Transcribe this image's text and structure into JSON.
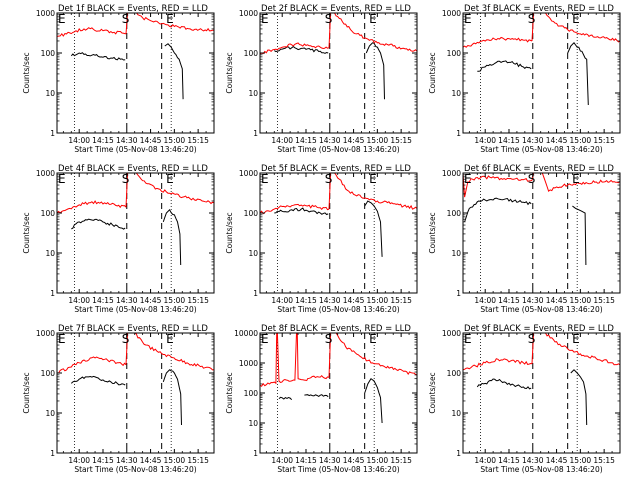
{
  "axis_common": {
    "ylabel": "Counts/sec",
    "xlabel": "Start Time (05-Nov-08 13:46:20)",
    "x_tick_labels": [
      "14:00",
      "14:15",
      "14:30",
      "14:45",
      "15:00",
      "15:15"
    ],
    "x_tick_minutes": [
      0,
      15,
      30,
      45,
      60,
      75
    ],
    "x_range_minutes": [
      -14,
      85
    ],
    "dotted_lines_minutes": [
      -3,
      58
    ],
    "dashed_lines_minutes": [
      30,
      52
    ],
    "markers": [
      {
        "label": "E",
        "minute": -14
      },
      {
        "label": "S",
        "minute": 30
      },
      {
        "label": "E",
        "minute": 58
      }
    ]
  },
  "colors": {
    "black_series": "#000000",
    "red_series": "#ff0000",
    "axes": "#000000"
  },
  "chart_data": [
    {
      "type": "line",
      "title": "Det 1f BLACK = Events, RED = LLD",
      "yscale": "log",
      "ylim": [
        1,
        1000
      ],
      "y_tick_labels": [
        "1",
        "10",
        "100",
        "1000"
      ],
      "y_ticks": [
        1,
        10,
        100,
        1000
      ],
      "series": [
        {
          "color": "black",
          "x": [
            -5,
            0,
            8,
            14,
            20,
            26,
            29
          ],
          "y": [
            85,
            100,
            88,
            80,
            75,
            70,
            68
          ]
        },
        {
          "color": "black",
          "x": [
            54,
            56,
            58,
            60,
            63,
            65,
            65.5
          ],
          "y": [
            150,
            170,
            140,
            100,
            70,
            40,
            7
          ]
        },
        {
          "color": "red",
          "x": [
            -14,
            -8,
            -2,
            3,
            9,
            15,
            22,
            28,
            29.5
          ],
          "y": [
            260,
            300,
            360,
            400,
            390,
            360,
            330,
            310,
            300
          ]
        },
        {
          "color": "red",
          "x": [
            29.5,
            30.5
          ],
          "y": [
            300,
            1000
          ]
        },
        {
          "color": "red",
          "x": [
            35,
            40,
            46,
            52,
            60,
            70,
            85
          ],
          "y": [
            1000,
            760,
            620,
            540,
            460,
            400,
            370
          ]
        }
      ]
    },
    {
      "type": "line",
      "title": "Det 2f BLACK = Events, RED = LLD",
      "yscale": "log",
      "ylim": [
        1,
        1000
      ],
      "y_tick_labels": [
        "1",
        "10",
        "100",
        "1000"
      ],
      "y_ticks": [
        1,
        10,
        100,
        1000
      ],
      "series": [
        {
          "color": "black",
          "x": [
            -5,
            0,
            6,
            12,
            18,
            24,
            29
          ],
          "y": [
            115,
            125,
            135,
            130,
            120,
            110,
            100
          ]
        },
        {
          "color": "black",
          "x": [
            53,
            55,
            57,
            60,
            62,
            64,
            64.5
          ],
          "y": [
            100,
            150,
            180,
            140,
            100,
            50,
            7
          ]
        },
        {
          "color": "red",
          "x": [
            -14,
            -6,
            0,
            8,
            16,
            24,
            29.5
          ],
          "y": [
            95,
            120,
            140,
            165,
            160,
            140,
            135
          ]
        },
        {
          "color": "red",
          "x": [
            29.5,
            30.5
          ],
          "y": [
            135,
            1000
          ]
        },
        {
          "color": "red",
          "x": [
            33,
            38,
            44,
            52,
            60,
            70,
            85
          ],
          "y": [
            1000,
            600,
            350,
            240,
            180,
            150,
            110
          ]
        }
      ]
    },
    {
      "type": "line",
      "title": "Det 3f BLACK = Events, RED = LLD",
      "yscale": "log",
      "ylim": [
        1,
        1000
      ],
      "y_tick_labels": [
        "1",
        "10",
        "100",
        "1000"
      ],
      "y_ticks": [
        1,
        10,
        100,
        1000
      ],
      "series": [
        {
          "color": "black",
          "x": [
            -5,
            0,
            6,
            12,
            18,
            24,
            29
          ],
          "y": [
            35,
            45,
            55,
            62,
            55,
            45,
            40
          ]
        },
        {
          "color": "black",
          "x": [
            52,
            54,
            56,
            58,
            61,
            64,
            65
          ],
          "y": [
            100,
            150,
            180,
            140,
            110,
            70,
            5
          ]
        },
        {
          "color": "red",
          "x": [
            -14,
            -6,
            0,
            8,
            16,
            24,
            29.5
          ],
          "y": [
            140,
            170,
            200,
            230,
            220,
            210,
            200
          ]
        },
        {
          "color": "red",
          "x": [
            29.5,
            30.5
          ],
          "y": [
            200,
            1000
          ]
        },
        {
          "color": "red",
          "x": [
            38,
            44,
            52,
            60,
            70,
            85
          ],
          "y": [
            1000,
            560,
            380,
            300,
            250,
            200
          ]
        }
      ]
    },
    {
      "type": "line",
      "title": "Det 4f BLACK = Events, RED = LLD",
      "yscale": "log",
      "ylim": [
        1,
        1000
      ],
      "y_tick_labels": [
        "1",
        "10",
        "100",
        "1000"
      ],
      "y_ticks": [
        1,
        10,
        100,
        1000
      ],
      "series": [
        {
          "color": "black",
          "x": [
            -5,
            0,
            6,
            12,
            18,
            24,
            29
          ],
          "y": [
            40,
            60,
            70,
            65,
            55,
            48,
            42
          ]
        },
        {
          "color": "black",
          "x": [
            53,
            55,
            57,
            60,
            62,
            63.5,
            64
          ],
          "y": [
            60,
            100,
            120,
            90,
            60,
            30,
            5
          ]
        },
        {
          "color": "red",
          "x": [
            -14,
            -6,
            0,
            8,
            16,
            24,
            29.5
          ],
          "y": [
            100,
            130,
            160,
            190,
            180,
            150,
            140
          ]
        },
        {
          "color": "red",
          "x": [
            29.5,
            30.5
          ],
          "y": [
            140,
            1000
          ]
        },
        {
          "color": "red",
          "x": [
            36,
            42,
            50,
            58,
            68,
            85
          ],
          "y": [
            1000,
            560,
            400,
            300,
            240,
            180
          ]
        }
      ]
    },
    {
      "type": "line",
      "title": "Det 5f BLACK = Events, RED = LLD",
      "yscale": "log",
      "ylim": [
        1,
        1000
      ],
      "y_tick_labels": [
        "1",
        "10",
        "100",
        "1000"
      ],
      "y_ticks": [
        1,
        10,
        100,
        1000
      ],
      "series": [
        {
          "color": "black",
          "x": [
            -5,
            0,
            6,
            12,
            18,
            24,
            29
          ],
          "y": [
            100,
            110,
            120,
            125,
            110,
            100,
            95
          ]
        },
        {
          "color": "black",
          "x": [
            52,
            54,
            56,
            58,
            60,
            62,
            63
          ],
          "y": [
            150,
            200,
            180,
            150,
            110,
            60,
            8
          ]
        },
        {
          "color": "red",
          "x": [
            -14,
            -6,
            0,
            8,
            16,
            24,
            29.5
          ],
          "y": [
            100,
            120,
            145,
            160,
            150,
            135,
            125
          ]
        },
        {
          "color": "red",
          "x": [
            29.5,
            30.5
          ],
          "y": [
            125,
            1000
          ]
        },
        {
          "color": "red",
          "x": [
            33,
            36,
            40,
            46,
            52,
            60,
            70,
            85
          ],
          "y": [
            1000,
            700,
            400,
            280,
            240,
            200,
            170,
            130
          ]
        }
      ]
    },
    {
      "type": "line",
      "title": "Det 6f BLACK = Events, RED = LLD",
      "yscale": "log",
      "ylim": [
        1,
        1000
      ],
      "y_tick_labels": [
        "1",
        "10",
        "100",
        "1000"
      ],
      "y_ticks": [
        1,
        10,
        100,
        1000
      ],
      "series": [
        {
          "color": "black",
          "x": [
            -13,
            -10,
            -5,
            0,
            6,
            12,
            18,
            24,
            29
          ],
          "y": [
            60,
            130,
            190,
            210,
            230,
            220,
            200,
            185,
            170
          ]
        },
        {
          "color": "black",
          "x": [
            55,
            57,
            59,
            61,
            63,
            63.5
          ],
          "y": [
            150,
            130,
            120,
            110,
            100,
            5
          ]
        },
        {
          "color": "red",
          "x": [
            -14,
            -13,
            -11,
            -8,
            -3,
            3,
            10,
            18,
            24,
            29.5
          ],
          "y": [
            1000,
            250,
            600,
            700,
            760,
            780,
            730,
            700,
            680,
            650
          ]
        },
        {
          "color": "red",
          "x": [
            29.5,
            30.5
          ],
          "y": [
            650,
            1000
          ]
        },
        {
          "color": "red",
          "x": [
            34,
            36,
            38,
            40,
            45,
            52,
            60,
            70,
            85
          ],
          "y": [
            1000,
            1000,
            600,
            350,
            450,
            500,
            550,
            600,
            620
          ]
        }
      ]
    },
    {
      "type": "line",
      "title": "Det 7f BLACK = Events, RED = LLD",
      "yscale": "log",
      "ylim": [
        1,
        1000
      ],
      "y_tick_labels": [
        "1",
        "10",
        "100",
        "1000"
      ],
      "y_ticks": [
        1,
        10,
        100,
        1000
      ],
      "series": [
        {
          "color": "black",
          "x": [
            -5,
            0,
            6,
            12,
            18,
            24,
            29
          ],
          "y": [
            55,
            70,
            80,
            75,
            60,
            55,
            50
          ]
        },
        {
          "color": "black",
          "x": [
            53,
            55,
            57,
            60,
            62,
            64,
            64.5
          ],
          "y": [
            60,
            100,
            120,
            100,
            70,
            30,
            5
          ]
        },
        {
          "color": "red",
          "x": [
            -14,
            -6,
            0,
            8,
            16,
            24,
            29.5
          ],
          "y": [
            100,
            140,
            180,
            240,
            220,
            180,
            160
          ]
        },
        {
          "color": "red",
          "x": [
            29.5,
            30.5
          ],
          "y": [
            160,
            1000
          ]
        },
        {
          "color": "red",
          "x": [
            35,
            42,
            50,
            58,
            68,
            85
          ],
          "y": [
            1000,
            500,
            330,
            250,
            180,
            120
          ]
        }
      ]
    },
    {
      "type": "line",
      "title": "Det 8f BLACK = Events, RED = LLD",
      "yscale": "log",
      "ylim": [
        1,
        10000
      ],
      "y_tick_labels": [
        "1",
        "10",
        "100",
        "1000",
        "10000"
      ],
      "y_ticks": [
        1,
        10,
        100,
        1000,
        10000
      ],
      "series": [
        {
          "color": "black",
          "x": [
            -2,
            2,
            6
          ],
          "y": [
            65,
            70,
            60
          ]
        },
        {
          "color": "black",
          "x": [
            14,
            20,
            26,
            29
          ],
          "y": [
            85,
            80,
            78,
            75
          ]
        },
        {
          "color": "black",
          "x": [
            52,
            54,
            56,
            58,
            60,
            62,
            63
          ],
          "y": [
            100,
            200,
            300,
            250,
            150,
            70,
            10
          ]
        },
        {
          "color": "red",
          "x": [
            -14,
            -8,
            -4,
            -3.5,
            -3,
            -2,
            8,
            9,
            9.5,
            10,
            12,
            14,
            15.5
          ],
          "y": [
            180,
            200,
            210,
            10000,
            10000,
            250,
            270,
            10000,
            10000,
            300,
            280,
            270,
            260
          ]
        },
        {
          "color": "red",
          "x": [
            15.5,
            16,
            18,
            24,
            29.5
          ],
          "y": [
            260,
            300,
            320,
            340,
            330
          ]
        },
        {
          "color": "red",
          "x": [
            29.5,
            30.5
          ],
          "y": [
            330,
            10000
          ]
        },
        {
          "color": "red",
          "x": [
            34,
            40,
            46,
            54,
            62,
            72,
            85
          ],
          "y": [
            10000,
            3500,
            2200,
            1200,
            800,
            600,
            400
          ]
        }
      ]
    },
    {
      "type": "line",
      "title": "Det 9f BLACK = Events, RED = LLD",
      "yscale": "log",
      "ylim": [
        1,
        1000
      ],
      "y_tick_labels": [
        "1",
        "10",
        "100",
        "1000"
      ],
      "y_ticks": [
        1,
        10,
        100,
        1000
      ],
      "series": [
        {
          "color": "black",
          "x": [
            -5,
            0,
            6,
            12,
            18,
            24,
            29
          ],
          "y": [
            45,
            55,
            70,
            60,
            50,
            45,
            42
          ]
        },
        {
          "color": "black",
          "x": [
            54,
            56,
            58,
            60,
            62,
            63.5,
            64
          ],
          "y": [
            100,
            120,
            100,
            80,
            60,
            30,
            5
          ]
        },
        {
          "color": "red",
          "x": [
            -14,
            -6,
            0,
            8,
            16,
            24,
            29.5
          ],
          "y": [
            120,
            150,
            180,
            220,
            200,
            180,
            170
          ]
        },
        {
          "color": "red",
          "x": [
            29.5,
            30.5
          ],
          "y": [
            170,
            1000
          ]
        },
        {
          "color": "red",
          "x": [
            38,
            44,
            52,
            60,
            70,
            85
          ],
          "y": [
            1000,
            600,
            400,
            300,
            230,
            160
          ]
        }
      ]
    }
  ]
}
